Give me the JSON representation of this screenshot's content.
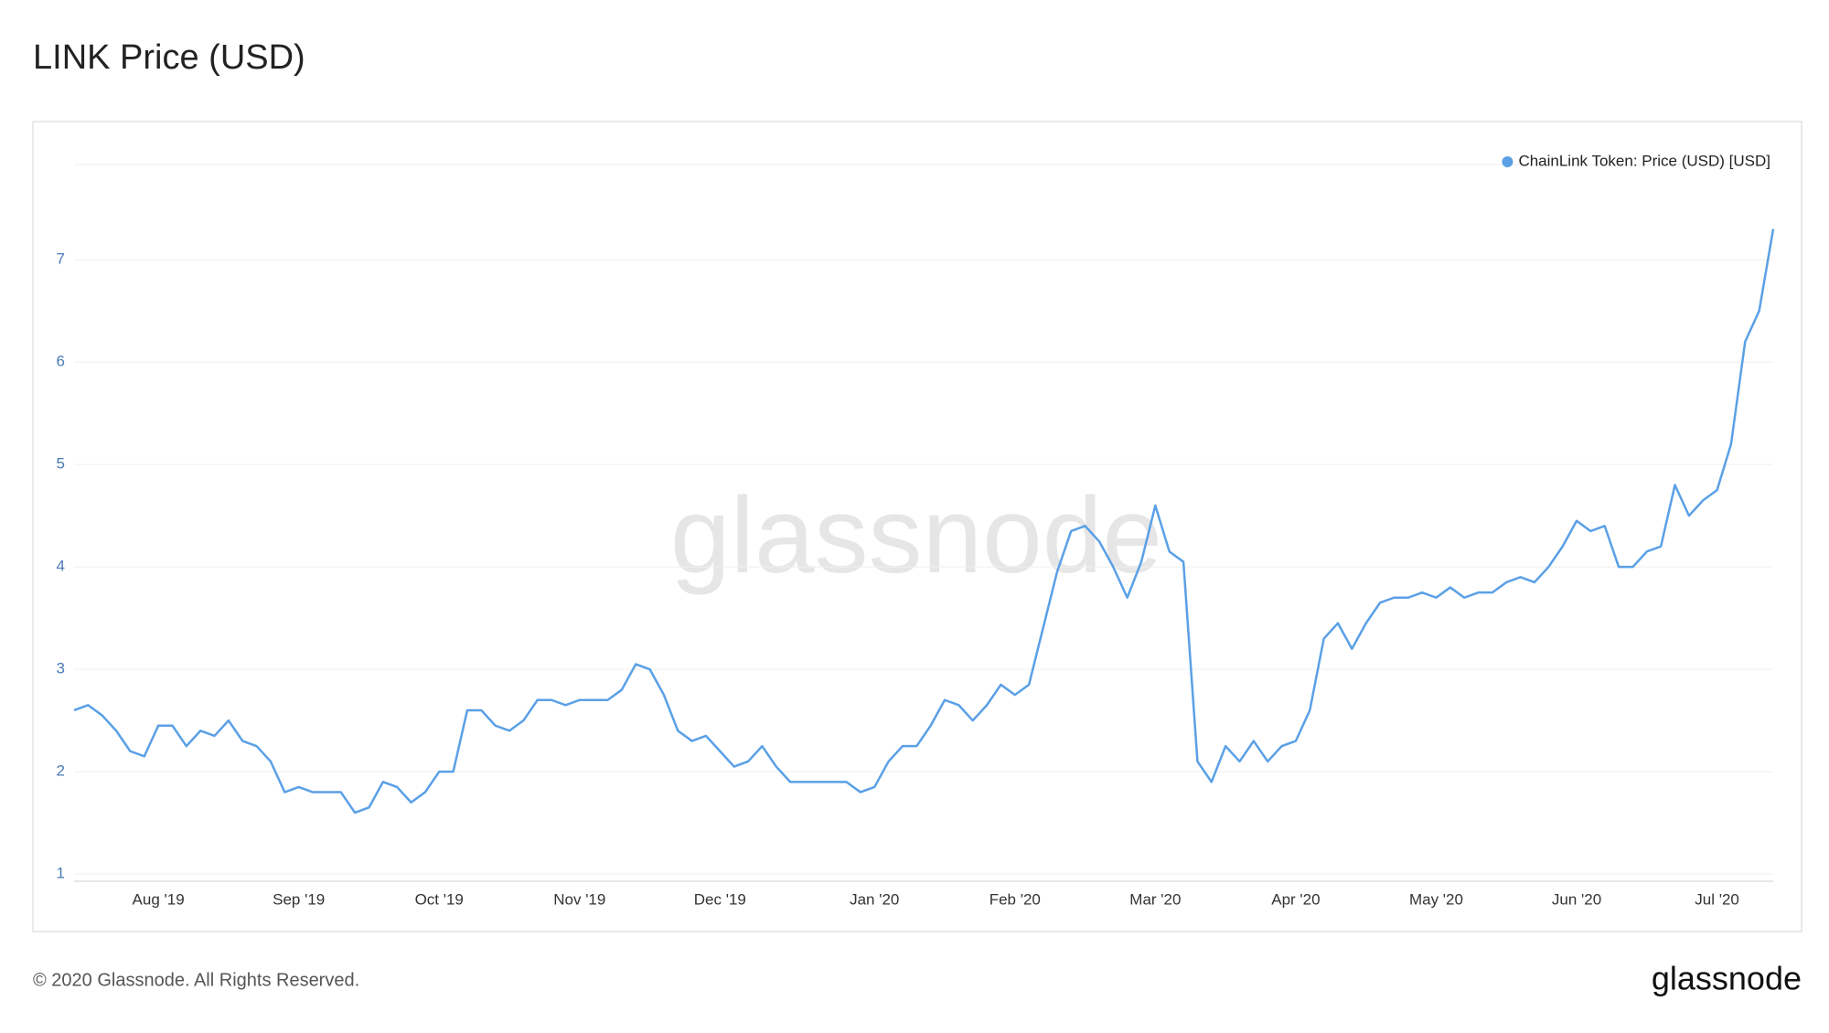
{
  "chart_data": {
    "type": "line",
    "title": "LINK Price (USD)",
    "watermark": "glassnode",
    "footer": "© 2020 Glassnode. All Rights Reserved.",
    "logo": "glassnode",
    "legend_position": "top-right",
    "grid": true,
    "ylim": [
      0.93,
      7.93
    ],
    "yticks": [
      1,
      2,
      3,
      4,
      5,
      6,
      7
    ],
    "categories": [
      null,
      null,
      null,
      null,
      null,
      null,
      "Aug '19",
      null,
      null,
      null,
      null,
      null,
      null,
      null,
      null,
      null,
      "Sep '19",
      null,
      null,
      null,
      null,
      null,
      null,
      null,
      null,
      null,
      "Oct '19",
      null,
      null,
      null,
      null,
      null,
      null,
      null,
      null,
      null,
      "Nov '19",
      null,
      null,
      null,
      null,
      null,
      null,
      null,
      null,
      null,
      "Dec '19",
      null,
      null,
      null,
      null,
      null,
      null,
      null,
      null,
      null,
      null,
      "Jan '20",
      null,
      null,
      null,
      null,
      null,
      null,
      null,
      null,
      null,
      "Feb '20",
      null,
      null,
      null,
      null,
      null,
      null,
      null,
      null,
      null,
      "Mar '20",
      null,
      null,
      null,
      null,
      null,
      null,
      null,
      null,
      null,
      "Apr '20",
      null,
      null,
      null,
      null,
      null,
      null,
      null,
      null,
      null,
      "May '20",
      null,
      null,
      null,
      null,
      null,
      null,
      null,
      null,
      null,
      "Jun '20",
      null,
      null,
      null,
      null,
      null,
      null,
      null,
      null,
      null,
      "Jul '20",
      null,
      null,
      null,
      null
    ],
    "series": [
      {
        "name": "ChainLink Token: Price (USD) [USD]",
        "color": "#5aa0e6",
        "values": [
          2.6,
          2.65,
          2.55,
          2.4,
          2.2,
          2.15,
          2.45,
          2.45,
          2.25,
          2.4,
          2.35,
          2.5,
          2.3,
          2.25,
          2.1,
          1.8,
          1.85,
          1.8,
          1.8,
          1.8,
          1.6,
          1.65,
          1.9,
          1.85,
          1.7,
          1.8,
          2.0,
          2.0,
          2.6,
          2.6,
          2.45,
          2.4,
          2.5,
          2.7,
          2.7,
          2.65,
          2.7,
          2.7,
          2.7,
          2.8,
          3.05,
          3.0,
          2.75,
          2.4,
          2.3,
          2.35,
          2.2,
          2.05,
          2.1,
          2.25,
          2.05,
          1.9,
          1.9,
          1.9,
          1.9,
          1.9,
          1.8,
          1.85,
          2.1,
          2.25,
          2.25,
          2.45,
          2.7,
          2.65,
          2.5,
          2.65,
          2.85,
          2.75,
          2.85,
          3.4,
          3.95,
          4.35,
          4.4,
          4.25,
          4.0,
          3.7,
          4.05,
          4.6,
          4.15,
          4.05,
          2.1,
          1.9,
          2.25,
          2.1,
          2.3,
          2.1,
          2.25,
          2.3,
          2.6,
          3.3,
          3.45,
          3.2,
          3.45,
          3.65,
          3.7,
          3.7,
          3.75,
          3.7,
          3.8,
          3.7,
          3.75,
          3.75,
          3.85,
          3.9,
          3.85,
          4.0,
          4.2,
          4.45,
          4.35,
          4.4,
          4.0,
          4.0,
          4.15,
          4.2,
          4.8,
          4.5,
          4.65,
          4.75,
          5.2,
          6.2,
          6.5,
          7.3
        ]
      }
    ]
  }
}
